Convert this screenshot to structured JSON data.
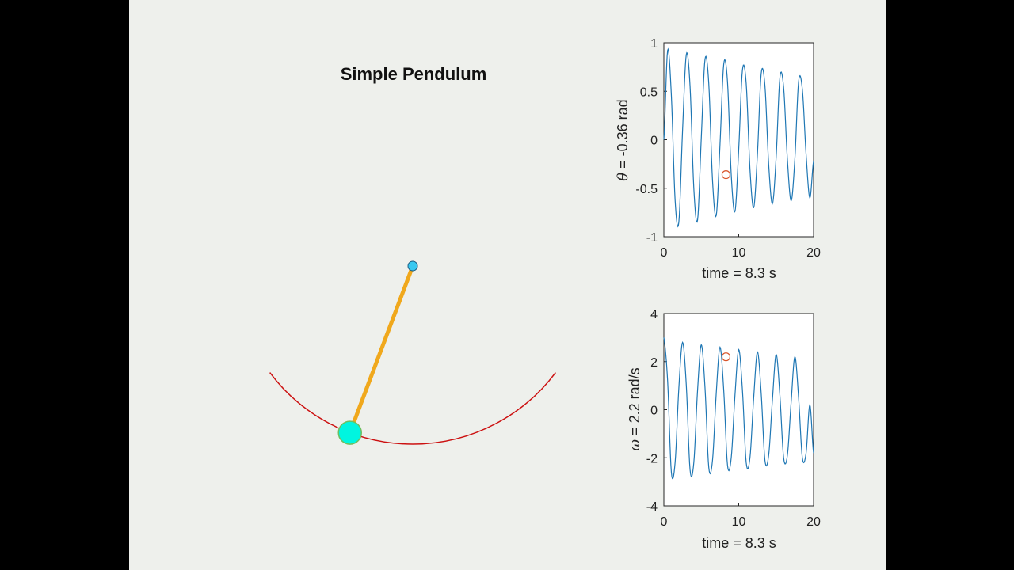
{
  "figure": {
    "title": "Simple Pendulum",
    "background": "#eef0ec",
    "pendulum": {
      "theta_rad": -0.36,
      "rod_color": "#f0a81c",
      "bob_color": "#00f5e0",
      "pivot_color": "#38c8f0",
      "arc_color": "#cc1111"
    }
  },
  "chart_data": [
    {
      "type": "line",
      "xlabel_prefix": "time = ",
      "xlabel_value": "8.3",
      "xlabel_unit": " s",
      "ylabel_symbol": "θ",
      "ylabel_rest": " = -0.36 rad",
      "xlim": [
        0,
        20
      ],
      "ylim": [
        -1,
        1
      ],
      "xticks": [
        "0",
        "10",
        "20"
      ],
      "yticks": [
        "-1",
        "-0.5",
        "0",
        "0.5",
        "1"
      ],
      "series_color": "#1f77b4",
      "marker_color": "#d9542a",
      "marker": {
        "x": 8.3,
        "y": -0.36
      },
      "x": [
        0.0,
        0.5,
        1.0,
        1.5,
        2.0,
        2.5,
        3.0,
        3.5,
        4.0,
        4.5,
        5.0,
        5.5,
        6.0,
        6.5,
        7.0,
        7.5,
        8.0,
        8.5,
        9.0,
        9.5,
        10.0,
        10.5,
        11.0,
        11.5,
        12.0,
        12.5,
        13.0,
        13.5,
        14.0,
        14.5,
        15.0,
        15.5,
        16.0,
        16.5,
        17.0,
        17.5,
        18.0,
        18.5,
        19.0,
        19.5,
        20.0
      ],
      "values": [
        0.0,
        0.92,
        0.46,
        -0.62,
        -0.85,
        0.1,
        0.88,
        0.55,
        -0.5,
        -0.83,
        0.02,
        0.83,
        0.58,
        -0.42,
        -0.78,
        -0.05,
        0.78,
        0.6,
        -0.36,
        -0.74,
        -0.1,
        0.72,
        0.58,
        -0.3,
        -0.7,
        -0.15,
        0.68,
        0.56,
        -0.25,
        -0.66,
        -0.18,
        0.64,
        0.54,
        -0.2,
        -0.63,
        -0.2,
        0.6,
        0.52,
        -0.15,
        -0.6,
        -0.22
      ]
    },
    {
      "type": "line",
      "xlabel_prefix": "time = ",
      "xlabel_value": "8.3",
      "xlabel_unit": " s",
      "ylabel_symbol": "ω",
      "ylabel_rest": " = 2.2 rad/s",
      "xlim": [
        0,
        20
      ],
      "ylim": [
        -4,
        4
      ],
      "xticks": [
        "0",
        "10",
        "20"
      ],
      "yticks": [
        "-4",
        "-2",
        "0",
        "2",
        "4"
      ],
      "series_color": "#1f77b4",
      "marker_color": "#d9542a",
      "marker": {
        "x": 8.3,
        "y": 2.2
      },
      "x": [
        0.0,
        0.5,
        1.0,
        1.5,
        2.0,
        2.5,
        3.0,
        3.5,
        4.0,
        4.5,
        5.0,
        5.5,
        6.0,
        6.5,
        7.0,
        7.5,
        8.0,
        8.5,
        9.0,
        9.5,
        10.0,
        10.5,
        11.0,
        11.5,
        12.0,
        12.5,
        13.0,
        13.5,
        14.0,
        14.5,
        15.0,
        15.5,
        16.0,
        16.5,
        17.0,
        17.5,
        18.0,
        18.5,
        19.0,
        19.5,
        20.0
      ],
      "values": [
        3.0,
        1.2,
        -2.6,
        -2.2,
        0.9,
        2.8,
        1.0,
        -2.5,
        -2.2,
        0.8,
        2.7,
        0.9,
        -2.4,
        -2.1,
        0.7,
        2.6,
        0.8,
        -2.3,
        -2.0,
        0.6,
        2.5,
        0.8,
        -2.2,
        -2.0,
        0.5,
        2.4,
        0.7,
        -2.1,
        -1.9,
        0.4,
        2.3,
        0.6,
        -2.0,
        -1.9,
        0.3,
        2.2,
        0.5,
        -2.0,
        -1.8,
        0.2,
        -1.8
      ]
    }
  ]
}
